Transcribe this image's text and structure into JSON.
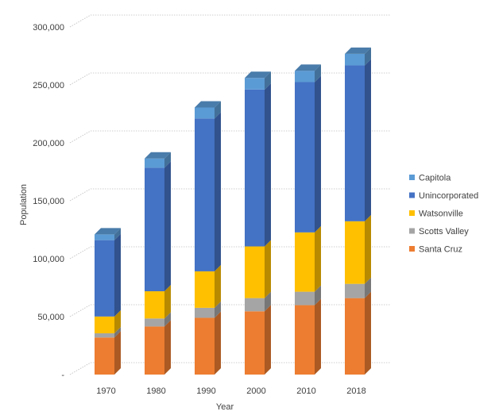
{
  "chart_data": {
    "type": "bar",
    "stacked": true,
    "style": "3d-column",
    "title": "",
    "xlabel": "Year",
    "ylabel": "Population",
    "ylim": [
      0,
      300000
    ],
    "yticks": [
      0,
      50000,
      100000,
      150000,
      200000,
      250000,
      300000
    ],
    "ytick_labels": [
      "-",
      "50,000",
      "100,000",
      "150,000",
      "200,000",
      "250,000",
      "300,000"
    ],
    "grid": true,
    "legend_position": "right",
    "categories": [
      "1970",
      "1980",
      "1990",
      "2000",
      "2010",
      "2018"
    ],
    "series": [
      {
        "name": "Santa Cruz",
        "color": "#ED7D31",
        "values": [
          32000,
          41500,
          49000,
          54600,
          59900,
          66000
        ]
      },
      {
        "name": "Scotts Valley",
        "color": "#A5A5A5",
        "values": [
          3600,
          6900,
          8600,
          11400,
          11600,
          12300
        ]
      },
      {
        "name": "Watsonville",
        "color": "#FFC000",
        "values": [
          14500,
          23500,
          31500,
          44600,
          51200,
          54000
        ]
      },
      {
        "name": "Unincorporated",
        "color": "#4472C4",
        "values": [
          65900,
          106600,
          131900,
          135400,
          129700,
          134500
        ]
      },
      {
        "name": "Capitola",
        "color": "#5B9BD5",
        "values": [
          5000,
          8000,
          9500,
          10000,
          9800,
          10000
        ]
      }
    ],
    "legend_order": [
      "Capitola",
      "Unincorporated",
      "Watsonville",
      "Scotts Valley",
      "Santa Cruz"
    ]
  }
}
